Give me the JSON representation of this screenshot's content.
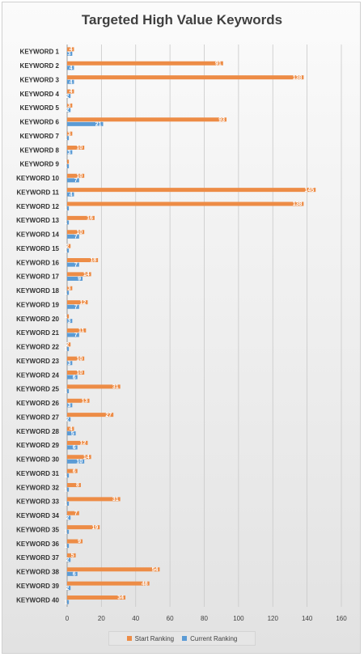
{
  "chart_data": {
    "type": "bar",
    "orientation": "horizontal",
    "title": "Targeted High Value Keywords",
    "categories": [
      "KEYWORD 1",
      "KEYWORD 2",
      "KEYWORD 3",
      "KEYWORD 4",
      "KEYWORD 5",
      "KEYWORD 6",
      "KEYWORD 7",
      "KEYWORD 8",
      "KEYWORD 9",
      "KEYWORD 10",
      "KEYWORD 11",
      "KEYWORD 12",
      "KEYWORD 13",
      "KEYWORD 14",
      "KEYWORD 15",
      "KEYWORD 16",
      "KEYWORD 17",
      "KEYWORD 18",
      "KEYWORD 19",
      "KEYWORD 20",
      "KEYWORD 21",
      "KEYWORD 22",
      "KEYWORD 23",
      "KEYWORD 24",
      "KEYWORD 25",
      "KEYWORD 26",
      "KEYWORD 27",
      "KEYWORD 28",
      "KEYWORD 29",
      "KEYWORD 30",
      "KEYWORD 31",
      "KEYWORD 32",
      "KEYWORD 33",
      "KEYWORD 34",
      "KEYWORD 35",
      "KEYWORD 36",
      "KEYWORD 37",
      "KEYWORD 38",
      "KEYWORD 39",
      "KEYWORD 40"
    ],
    "series": [
      {
        "name": "Start Ranking",
        "color": "#ed8c46",
        "values": [
          4,
          91,
          138,
          4,
          3,
          93,
          3,
          10,
          1,
          10,
          145,
          138,
          16,
          10,
          2,
          18,
          14,
          3,
          12,
          1,
          11,
          2,
          10,
          10,
          31,
          13,
          27,
          4,
          12,
          14,
          6,
          8,
          31,
          7,
          19,
          9,
          5,
          54,
          48,
          34
        ]
      },
      {
        "name": "Current Ranking",
        "color": "#5b9bd5",
        "values": [
          3,
          4,
          4,
          2,
          2,
          21,
          1,
          3,
          1,
          7,
          4,
          1,
          1,
          7,
          1,
          7,
          9,
          1,
          7,
          3,
          7,
          1,
          3,
          6,
          1,
          3,
          2,
          5,
          6,
          10,
          1,
          1,
          1,
          2,
          1,
          1,
          2,
          6,
          2,
          1
        ]
      }
    ],
    "xlim": [
      0,
      160
    ],
    "xticks": [
      0,
      20,
      40,
      60,
      80,
      100,
      120,
      140,
      160
    ],
    "grid": true,
    "legend_position": "bottom"
  }
}
